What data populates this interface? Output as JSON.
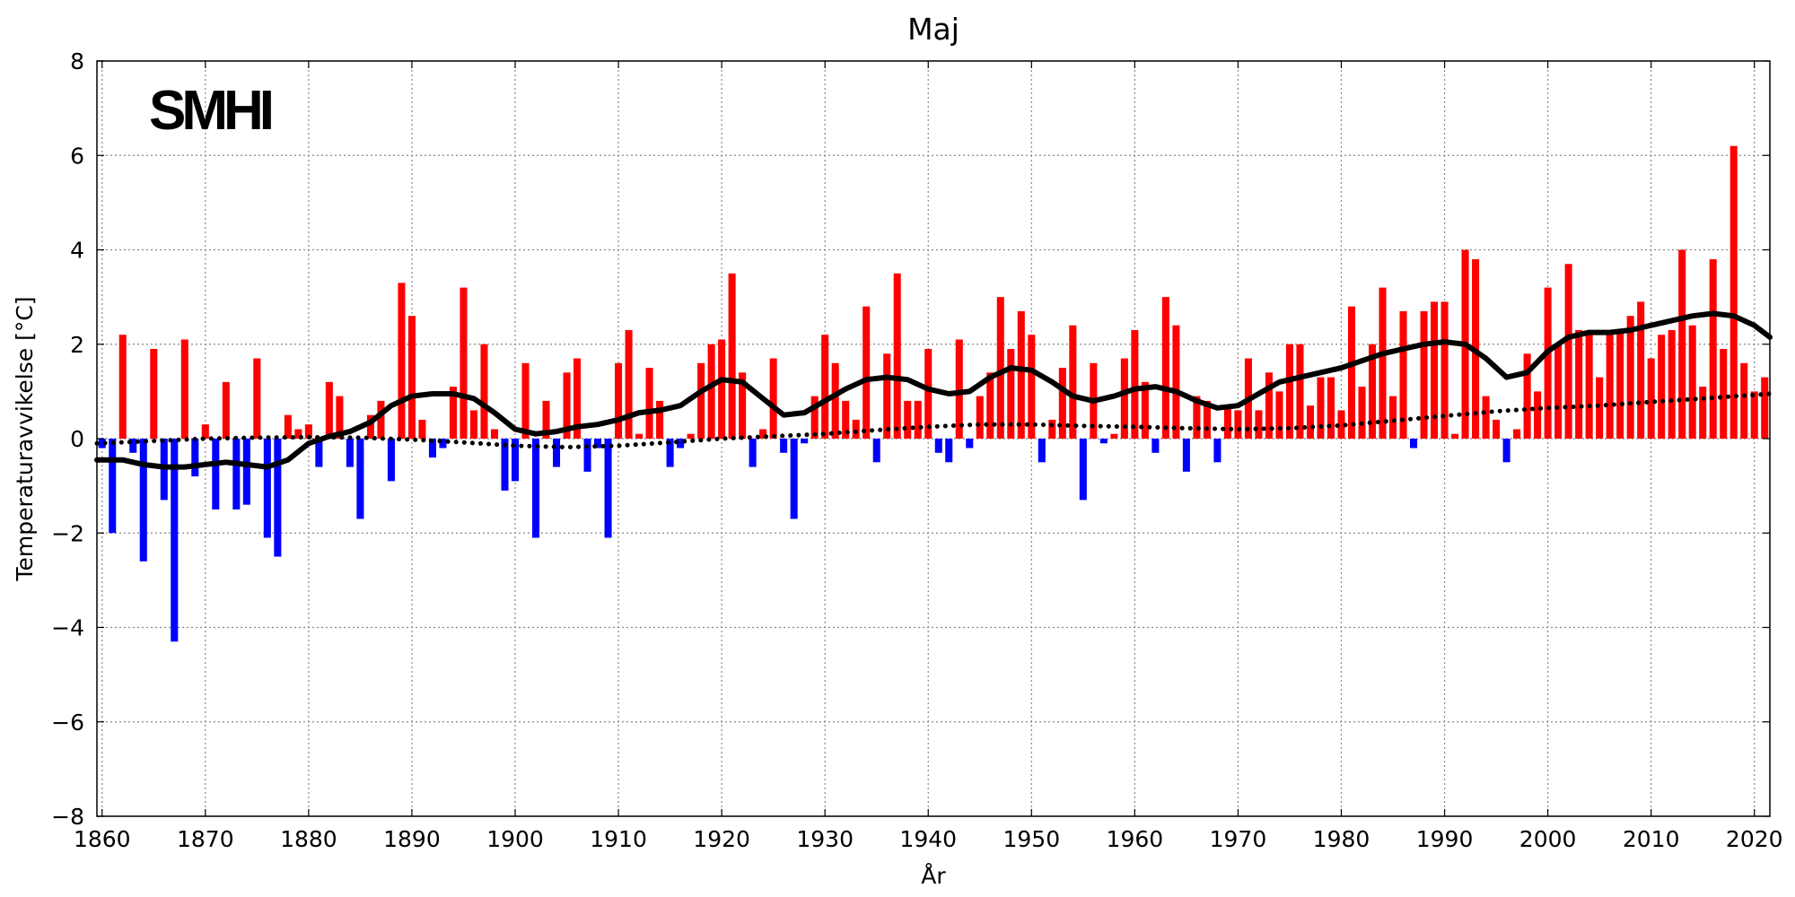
{
  "chart_data": {
    "type": "bar",
    "title": "Maj",
    "xlabel": "År",
    "ylabel": "Temperaturavvikelse [°C]",
    "logo": "SMHI",
    "xlim": [
      1859.5,
      2021.5
    ],
    "ylim": [
      -8,
      8
    ],
    "xticks": [
      1860,
      1870,
      1880,
      1890,
      1900,
      1910,
      1920,
      1930,
      1940,
      1950,
      1960,
      1970,
      1980,
      1990,
      2000,
      2010,
      2020
    ],
    "yticks": [
      -8,
      -6,
      -4,
      -2,
      0,
      2,
      4,
      6,
      8
    ],
    "ytick_labels": [
      "−8",
      "−6",
      "−4",
      "−2",
      "0",
      "2",
      "4",
      "6",
      "8"
    ],
    "grid": true,
    "positive_color": "#ff0000",
    "negative_color": "#0000ff",
    "years": [
      1860,
      1861,
      1862,
      1863,
      1864,
      1865,
      1866,
      1867,
      1868,
      1869,
      1870,
      1871,
      1872,
      1873,
      1874,
      1875,
      1876,
      1877,
      1878,
      1879,
      1880,
      1881,
      1882,
      1883,
      1884,
      1885,
      1886,
      1887,
      1888,
      1889,
      1890,
      1891,
      1892,
      1893,
      1894,
      1895,
      1896,
      1897,
      1898,
      1899,
      1900,
      1901,
      1902,
      1903,
      1904,
      1905,
      1906,
      1907,
      1908,
      1909,
      1910,
      1911,
      1912,
      1913,
      1914,
      1915,
      1916,
      1917,
      1918,
      1919,
      1920,
      1921,
      1922,
      1923,
      1924,
      1925,
      1926,
      1927,
      1928,
      1929,
      1930,
      1931,
      1932,
      1933,
      1934,
      1935,
      1936,
      1937,
      1938,
      1939,
      1940,
      1941,
      1942,
      1943,
      1944,
      1945,
      1946,
      1947,
      1948,
      1949,
      1950,
      1951,
      1952,
      1953,
      1954,
      1955,
      1956,
      1957,
      1958,
      1959,
      1960,
      1961,
      1962,
      1963,
      1964,
      1965,
      1966,
      1967,
      1968,
      1969,
      1970,
      1971,
      1972,
      1973,
      1974,
      1975,
      1976,
      1977,
      1978,
      1979,
      1980,
      1981,
      1982,
      1983,
      1984,
      1985,
      1986,
      1987,
      1988,
      1989,
      1990,
      1991,
      1992,
      1993,
      1994,
      1995,
      1996,
      1997,
      1998,
      1999,
      2000,
      2001,
      2002,
      2003,
      2004,
      2005,
      2006,
      2007,
      2008,
      2009,
      2010,
      2011,
      2012,
      2013,
      2014,
      2015,
      2016,
      2017,
      2018,
      2019,
      2020,
      2021
    ],
    "values": [
      -0.2,
      -2.0,
      2.2,
      -0.3,
      -2.6,
      1.9,
      -1.3,
      -4.3,
      2.1,
      -0.8,
      0.3,
      -1.5,
      1.2,
      -1.5,
      -1.4,
      1.7,
      -2.1,
      -2.5,
      0.5,
      0.2,
      0.3,
      -0.6,
      1.2,
      0.9,
      -0.6,
      -1.7,
      0.5,
      0.8,
      -0.9,
      3.3,
      2.6,
      0.4,
      -0.4,
      -0.2,
      1.1,
      3.2,
      0.6,
      2.0,
      0.2,
      -1.1,
      -0.9,
      1.6,
      -2.1,
      0.8,
      -0.6,
      1.4,
      1.7,
      -0.7,
      -0.2,
      -2.1,
      1.6,
      2.3,
      0.1,
      1.5,
      0.8,
      -0.6,
      -0.2,
      0.1,
      1.6,
      2.0,
      2.1,
      3.5,
      1.4,
      -0.6,
      0.2,
      1.7,
      -0.3,
      -1.7,
      -0.1,
      0.9,
      2.2,
      1.6,
      0.8,
      0.4,
      2.8,
      -0.5,
      1.8,
      3.5,
      0.8,
      0.8,
      1.9,
      -0.3,
      -0.5,
      2.1,
      -0.2,
      0.9,
      1.4,
      3.0,
      1.9,
      2.7,
      2.2,
      -0.5,
      0.4,
      1.5,
      2.4,
      -1.3,
      1.6,
      -0.1,
      0.1,
      1.7,
      2.3,
      1.2,
      -0.3,
      3.0,
      2.4,
      -0.7,
      0.9,
      0.8,
      -0.5,
      0.7,
      0.6,
      1.7,
      0.6,
      1.4,
      1.0,
      2.0,
      2.0,
      0.7,
      1.3,
      1.3,
      0.6,
      2.8,
      1.1,
      2.0,
      3.2,
      0.9,
      2.7,
      -0.2,
      2.7,
      2.9,
      2.9,
      0.1,
      4.0,
      3.8,
      0.9,
      0.4,
      -0.5,
      0.2,
      1.8,
      1.0,
      3.2,
      2.0,
      3.7,
      2.3,
      2.2,
      1.3,
      2.3,
      2.3,
      2.6,
      2.9,
      1.7,
      2.2,
      2.3,
      4.0,
      2.4,
      1.1,
      3.8,
      1.9,
      6.2,
      1.6,
      1.0,
      1.3
    ],
    "series": [
      {
        "name": "smoothed",
        "style": "solid",
        "x": [
          1859.5,
          1862,
          1864,
          1866,
          1868,
          1870,
          1872,
          1874,
          1876,
          1878,
          1880,
          1882,
          1884,
          1886,
          1888,
          1890,
          1892,
          1894,
          1896,
          1898,
          1900,
          1902,
          1904,
          1906,
          1908,
          1910,
          1912,
          1914,
          1916,
          1918,
          1920,
          1922,
          1924,
          1926,
          1928,
          1930,
          1932,
          1934,
          1936,
          1938,
          1940,
          1942,
          1944,
          1946,
          1948,
          1950,
          1952,
          1954,
          1956,
          1958,
          1960,
          1962,
          1964,
          1966,
          1968,
          1970,
          1972,
          1974,
          1976,
          1978,
          1980,
          1982,
          1984,
          1986,
          1988,
          1990,
          1992,
          1994,
          1996,
          1998,
          2000,
          2002,
          2004,
          2006,
          2008,
          2010,
          2012,
          2014,
          2016,
          2018,
          2020,
          2021.5
        ],
        "y": [
          -0.45,
          -0.45,
          -0.55,
          -0.6,
          -0.6,
          -0.55,
          -0.5,
          -0.55,
          -0.6,
          -0.45,
          -0.1,
          0.05,
          0.15,
          0.35,
          0.7,
          0.9,
          0.95,
          0.95,
          0.85,
          0.55,
          0.2,
          0.1,
          0.15,
          0.25,
          0.3,
          0.4,
          0.55,
          0.6,
          0.7,
          1.0,
          1.25,
          1.2,
          0.85,
          0.5,
          0.55,
          0.8,
          1.05,
          1.25,
          1.3,
          1.25,
          1.05,
          0.95,
          1.0,
          1.3,
          1.5,
          1.45,
          1.2,
          0.9,
          0.8,
          0.9,
          1.05,
          1.1,
          1.0,
          0.8,
          0.65,
          0.7,
          0.95,
          1.2,
          1.3,
          1.4,
          1.5,
          1.65,
          1.8,
          1.9,
          2.0,
          2.05,
          2.0,
          1.7,
          1.3,
          1.4,
          1.85,
          2.15,
          2.25,
          2.25,
          2.3,
          2.4,
          2.5,
          2.6,
          2.65,
          2.6,
          2.4,
          2.15
        ]
      },
      {
        "name": "trend",
        "style": "dotted",
        "x": [
          1859.5,
          1865,
          1870,
          1875,
          1880,
          1885,
          1890,
          1895,
          1900,
          1905,
          1910,
          1915,
          1920,
          1925,
          1930,
          1935,
          1940,
          1945,
          1950,
          1955,
          1960,
          1965,
          1970,
          1975,
          1980,
          1985,
          1990,
          1995,
          2000,
          2005,
          2010,
          2015,
          2021.5
        ],
        "y": [
          -0.1,
          -0.05,
          0.0,
          0.02,
          0.03,
          0.02,
          -0.02,
          -0.08,
          -0.15,
          -0.18,
          -0.15,
          -0.08,
          0.0,
          0.05,
          0.1,
          0.18,
          0.25,
          0.3,
          0.3,
          0.27,
          0.25,
          0.22,
          0.2,
          0.22,
          0.28,
          0.38,
          0.48,
          0.58,
          0.65,
          0.7,
          0.78,
          0.85,
          0.95
        ]
      }
    ]
  }
}
